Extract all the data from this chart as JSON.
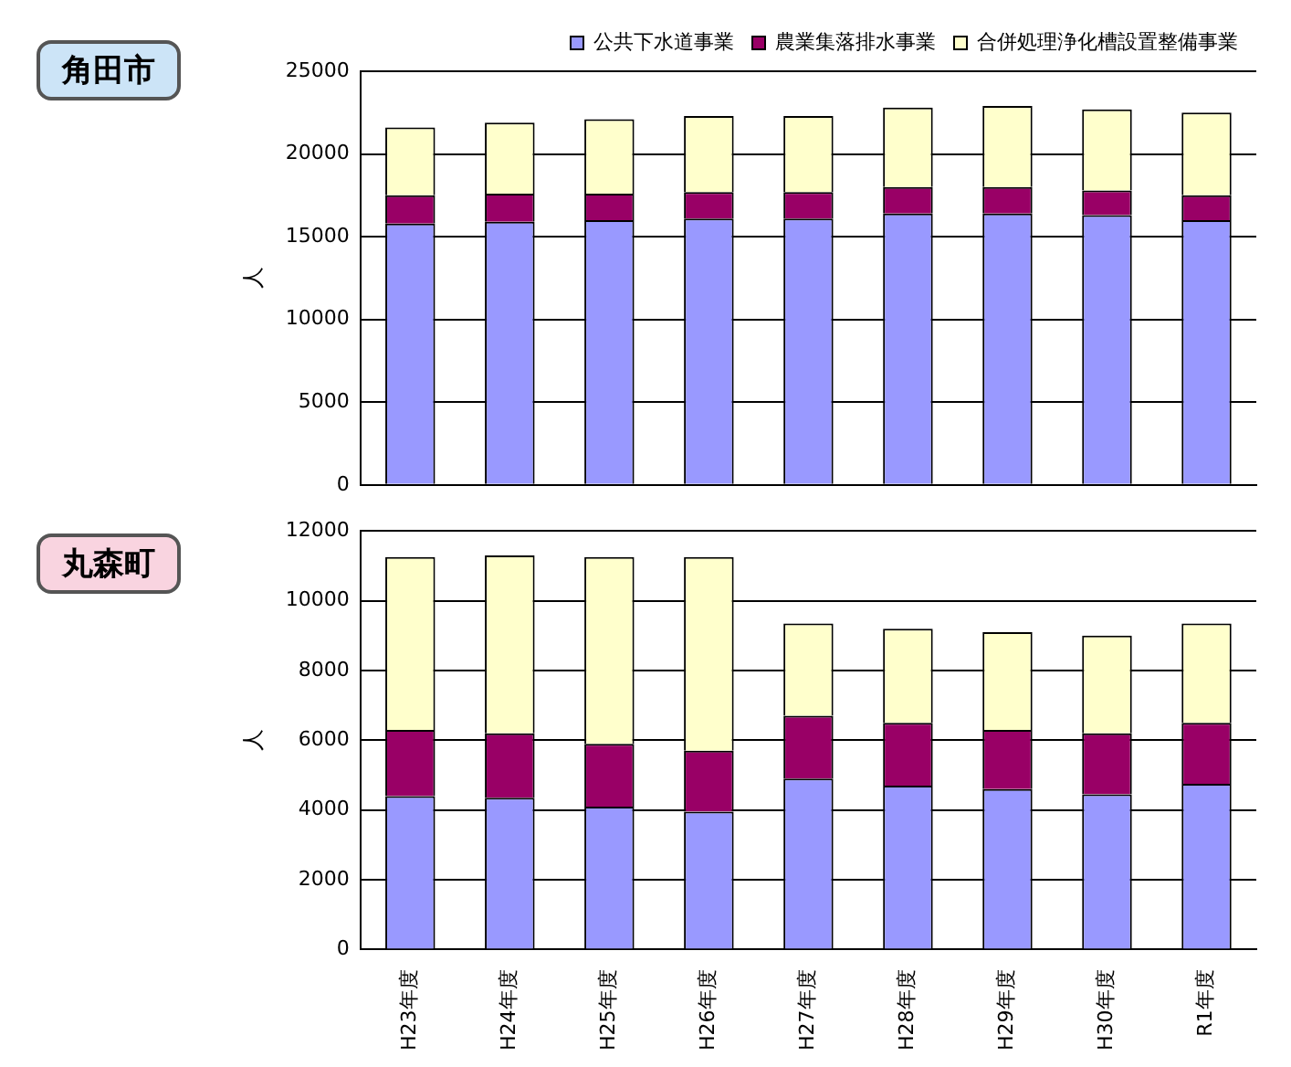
{
  "chart_data": [
    {
      "type": "bar",
      "title": "角田市",
      "ylabel": "人",
      "stacked": true,
      "categories": [
        null,
        null,
        null,
        null,
        null,
        null,
        null,
        null,
        null
      ],
      "series": [
        {
          "name": "公共下水道事業",
          "color": "#9999ff",
          "values": [
            15800,
            15900,
            16000,
            16100,
            16100,
            16400,
            16400,
            16300,
            16000
          ]
        },
        {
          "name": "農業集落排水事業",
          "color": "#990066",
          "values": [
            1700,
            1700,
            1600,
            1600,
            1600,
            1600,
            1600,
            1500,
            1500
          ]
        },
        {
          "name": "合併処理浄化槽設置整備事業",
          "color": "#ffffcc",
          "values": [
            4100,
            4300,
            4500,
            4600,
            4600,
            4800,
            4900,
            4900,
            5000
          ]
        }
      ],
      "ylim": [
        0,
        25000
      ],
      "yticks": [
        0,
        5000,
        10000,
        15000,
        20000,
        25000
      ],
      "grid": "y",
      "legend": "top right",
      "tick_labels": "y"
    },
    {
      "type": "bar",
      "title": "丸森町",
      "ylabel": "人",
      "stacked": true,
      "categories": [
        "H23年度",
        "H24年度",
        "H25年度",
        "H26年度",
        "H27年度",
        "H28年度",
        "H29年度",
        "H30年度",
        "R1年度"
      ],
      "series": [
        {
          "color": "#9999ff",
          "values": [
            4400,
            4350,
            4100,
            3950,
            4900,
            4700,
            4600,
            4450,
            4750
          ]
        },
        {
          "color": "#990066",
          "values": [
            1900,
            1850,
            1800,
            1750,
            1800,
            1800,
            1700,
            1750,
            1750
          ]
        },
        {
          "color": "#ffffcc",
          "values": [
            4950,
            5100,
            5350,
            5550,
            2650,
            2700,
            2800,
            2800,
            2850
          ]
        }
      ],
      "ylim": [
        0,
        12000
      ],
      "yticks": [
        0,
        2000,
        4000,
        6000,
        8000,
        10000,
        12000
      ],
      "grid": "y"
    }
  ]
}
